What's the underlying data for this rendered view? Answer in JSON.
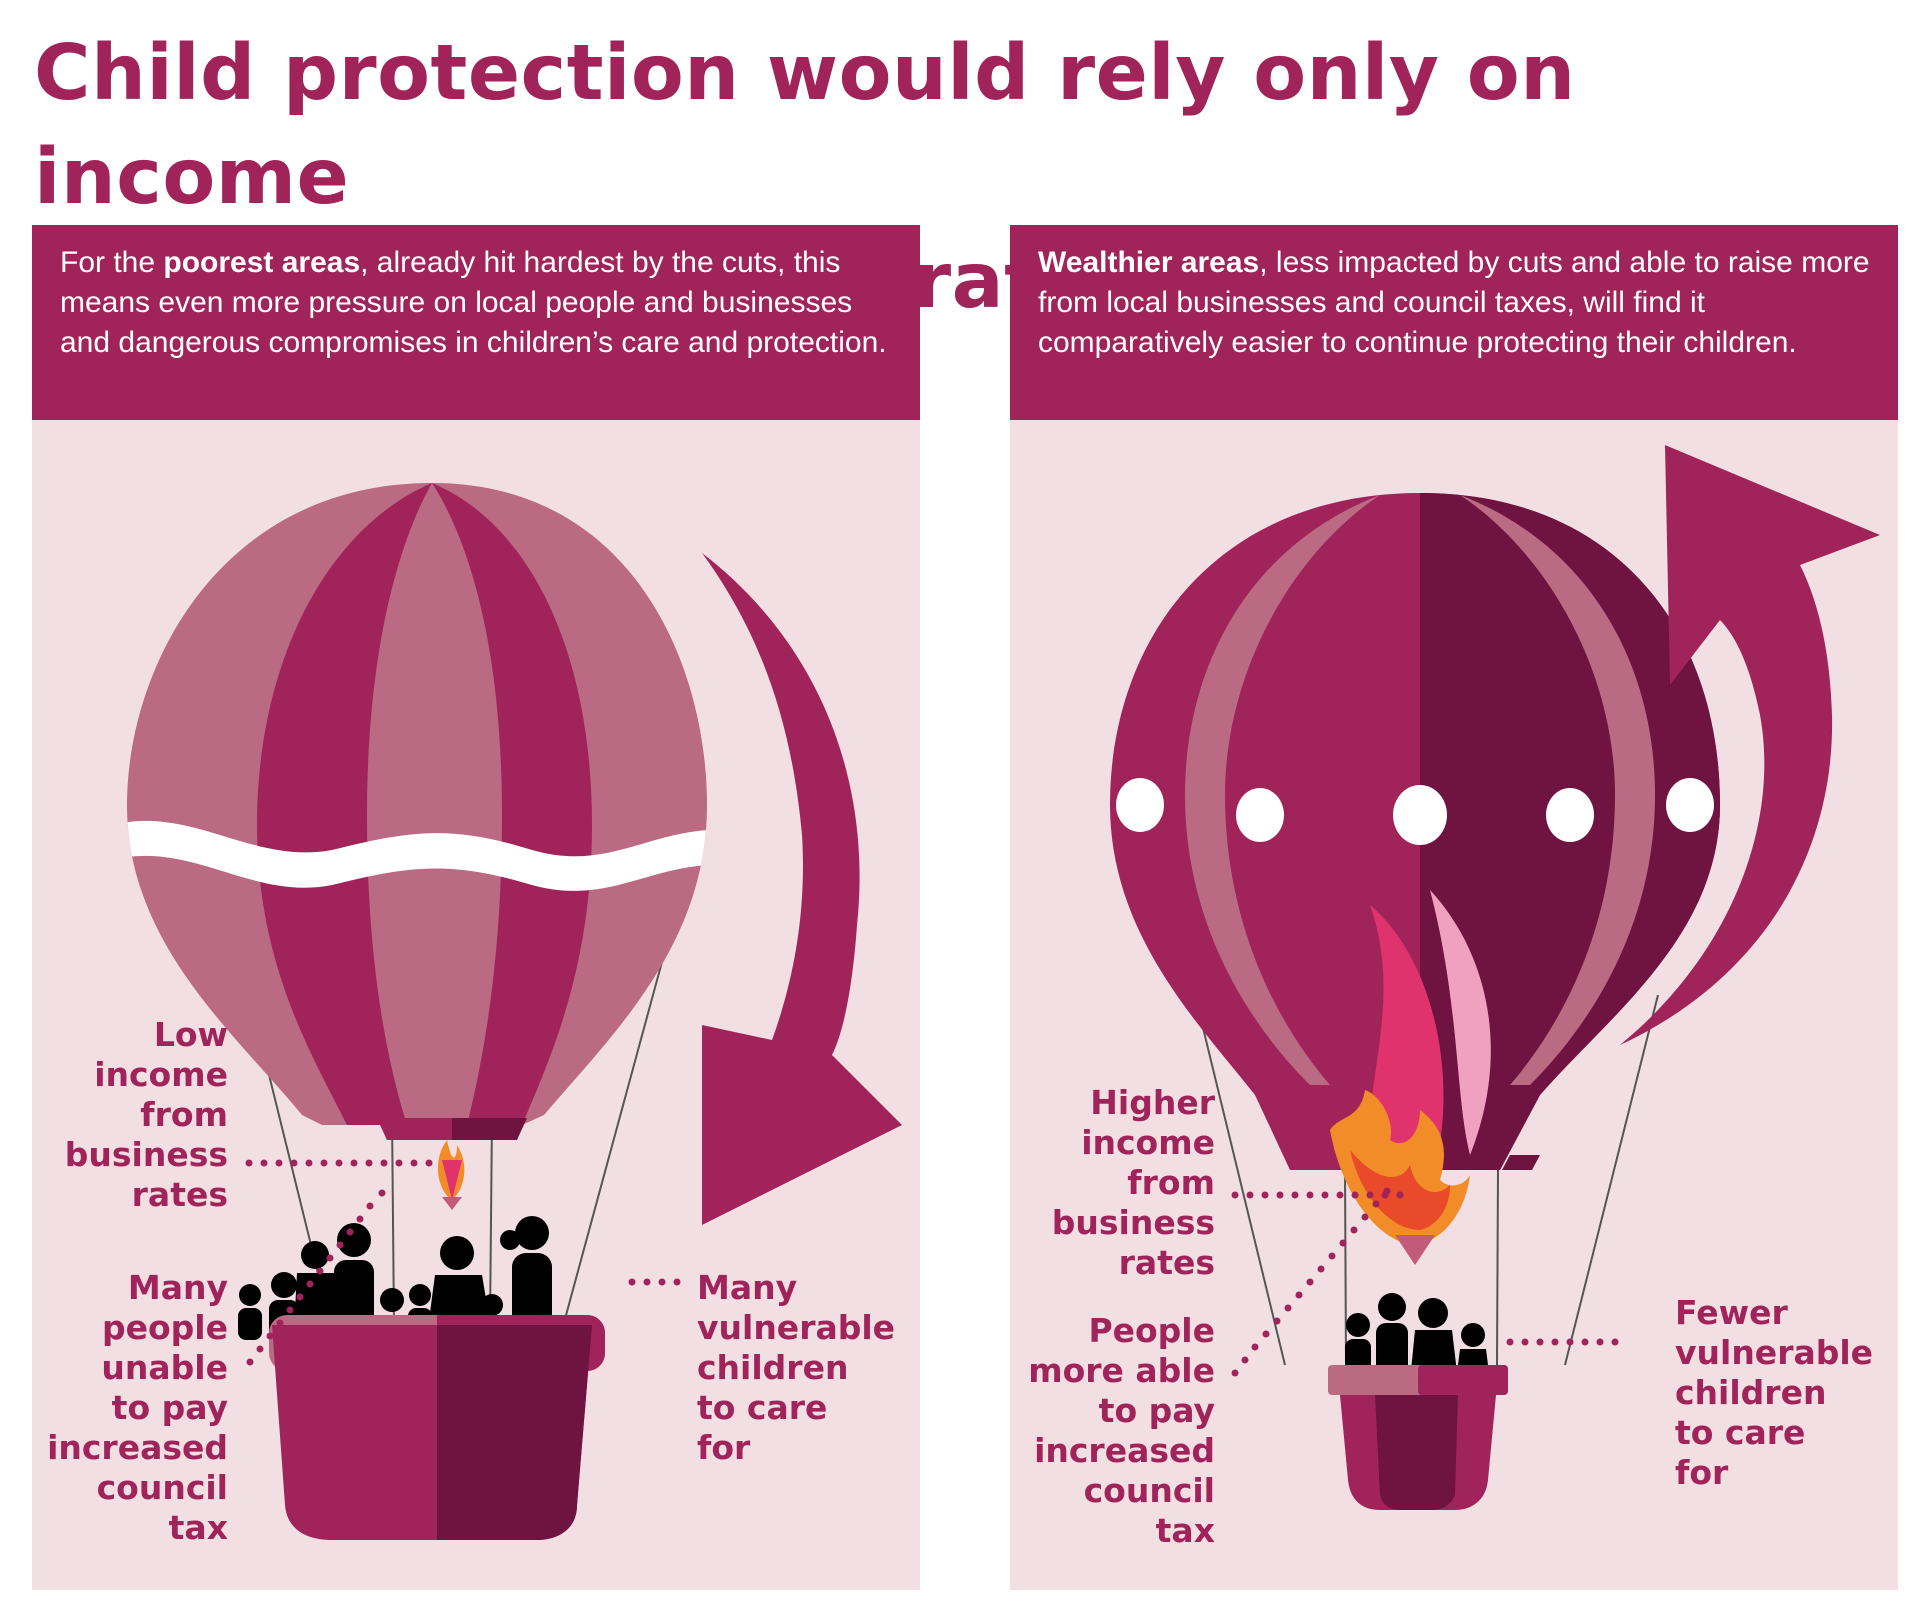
{
  "title": "Child protection would rely only on income\nfrom local business rates and council tax.",
  "left_panel": {
    "intro_prefix": "For the ",
    "intro_bold": "poorest areas",
    "intro_rest": ", already hit hardest by the cuts, this means even more pressure on local people and businesses and dangerous compromises in children’s care and protection.",
    "label_income": "Low\nincome\nfrom\nbusiness\nrates",
    "label_people": "Many\npeople\nunable\nto pay\nincreased\ncouncil\ntax",
    "label_children": "Many\nvulnerable\nchildren\nto care\nfor",
    "arrow_direction": "down"
  },
  "right_panel": {
    "intro_bold": "Wealthier areas",
    "intro_rest": ", less impacted by cuts and able to raise more from local businesses and council taxes, will find it comparatively easier to continue protecting their children.",
    "label_income": "Higher\nincome\nfrom\nbusiness\nrates",
    "label_people": "People\nmore able\nto pay\nincreased\ncouncil\ntax",
    "label_children": "Fewer\nvulnerable\nchildren\nto care\nfor",
    "arrow_direction": "up"
  },
  "colors": {
    "primary": "#a0245a",
    "dark": "#6f1340",
    "light": "#bb6a83",
    "panel_bg": "#f2dfe4",
    "flame": "#e0336e"
  }
}
